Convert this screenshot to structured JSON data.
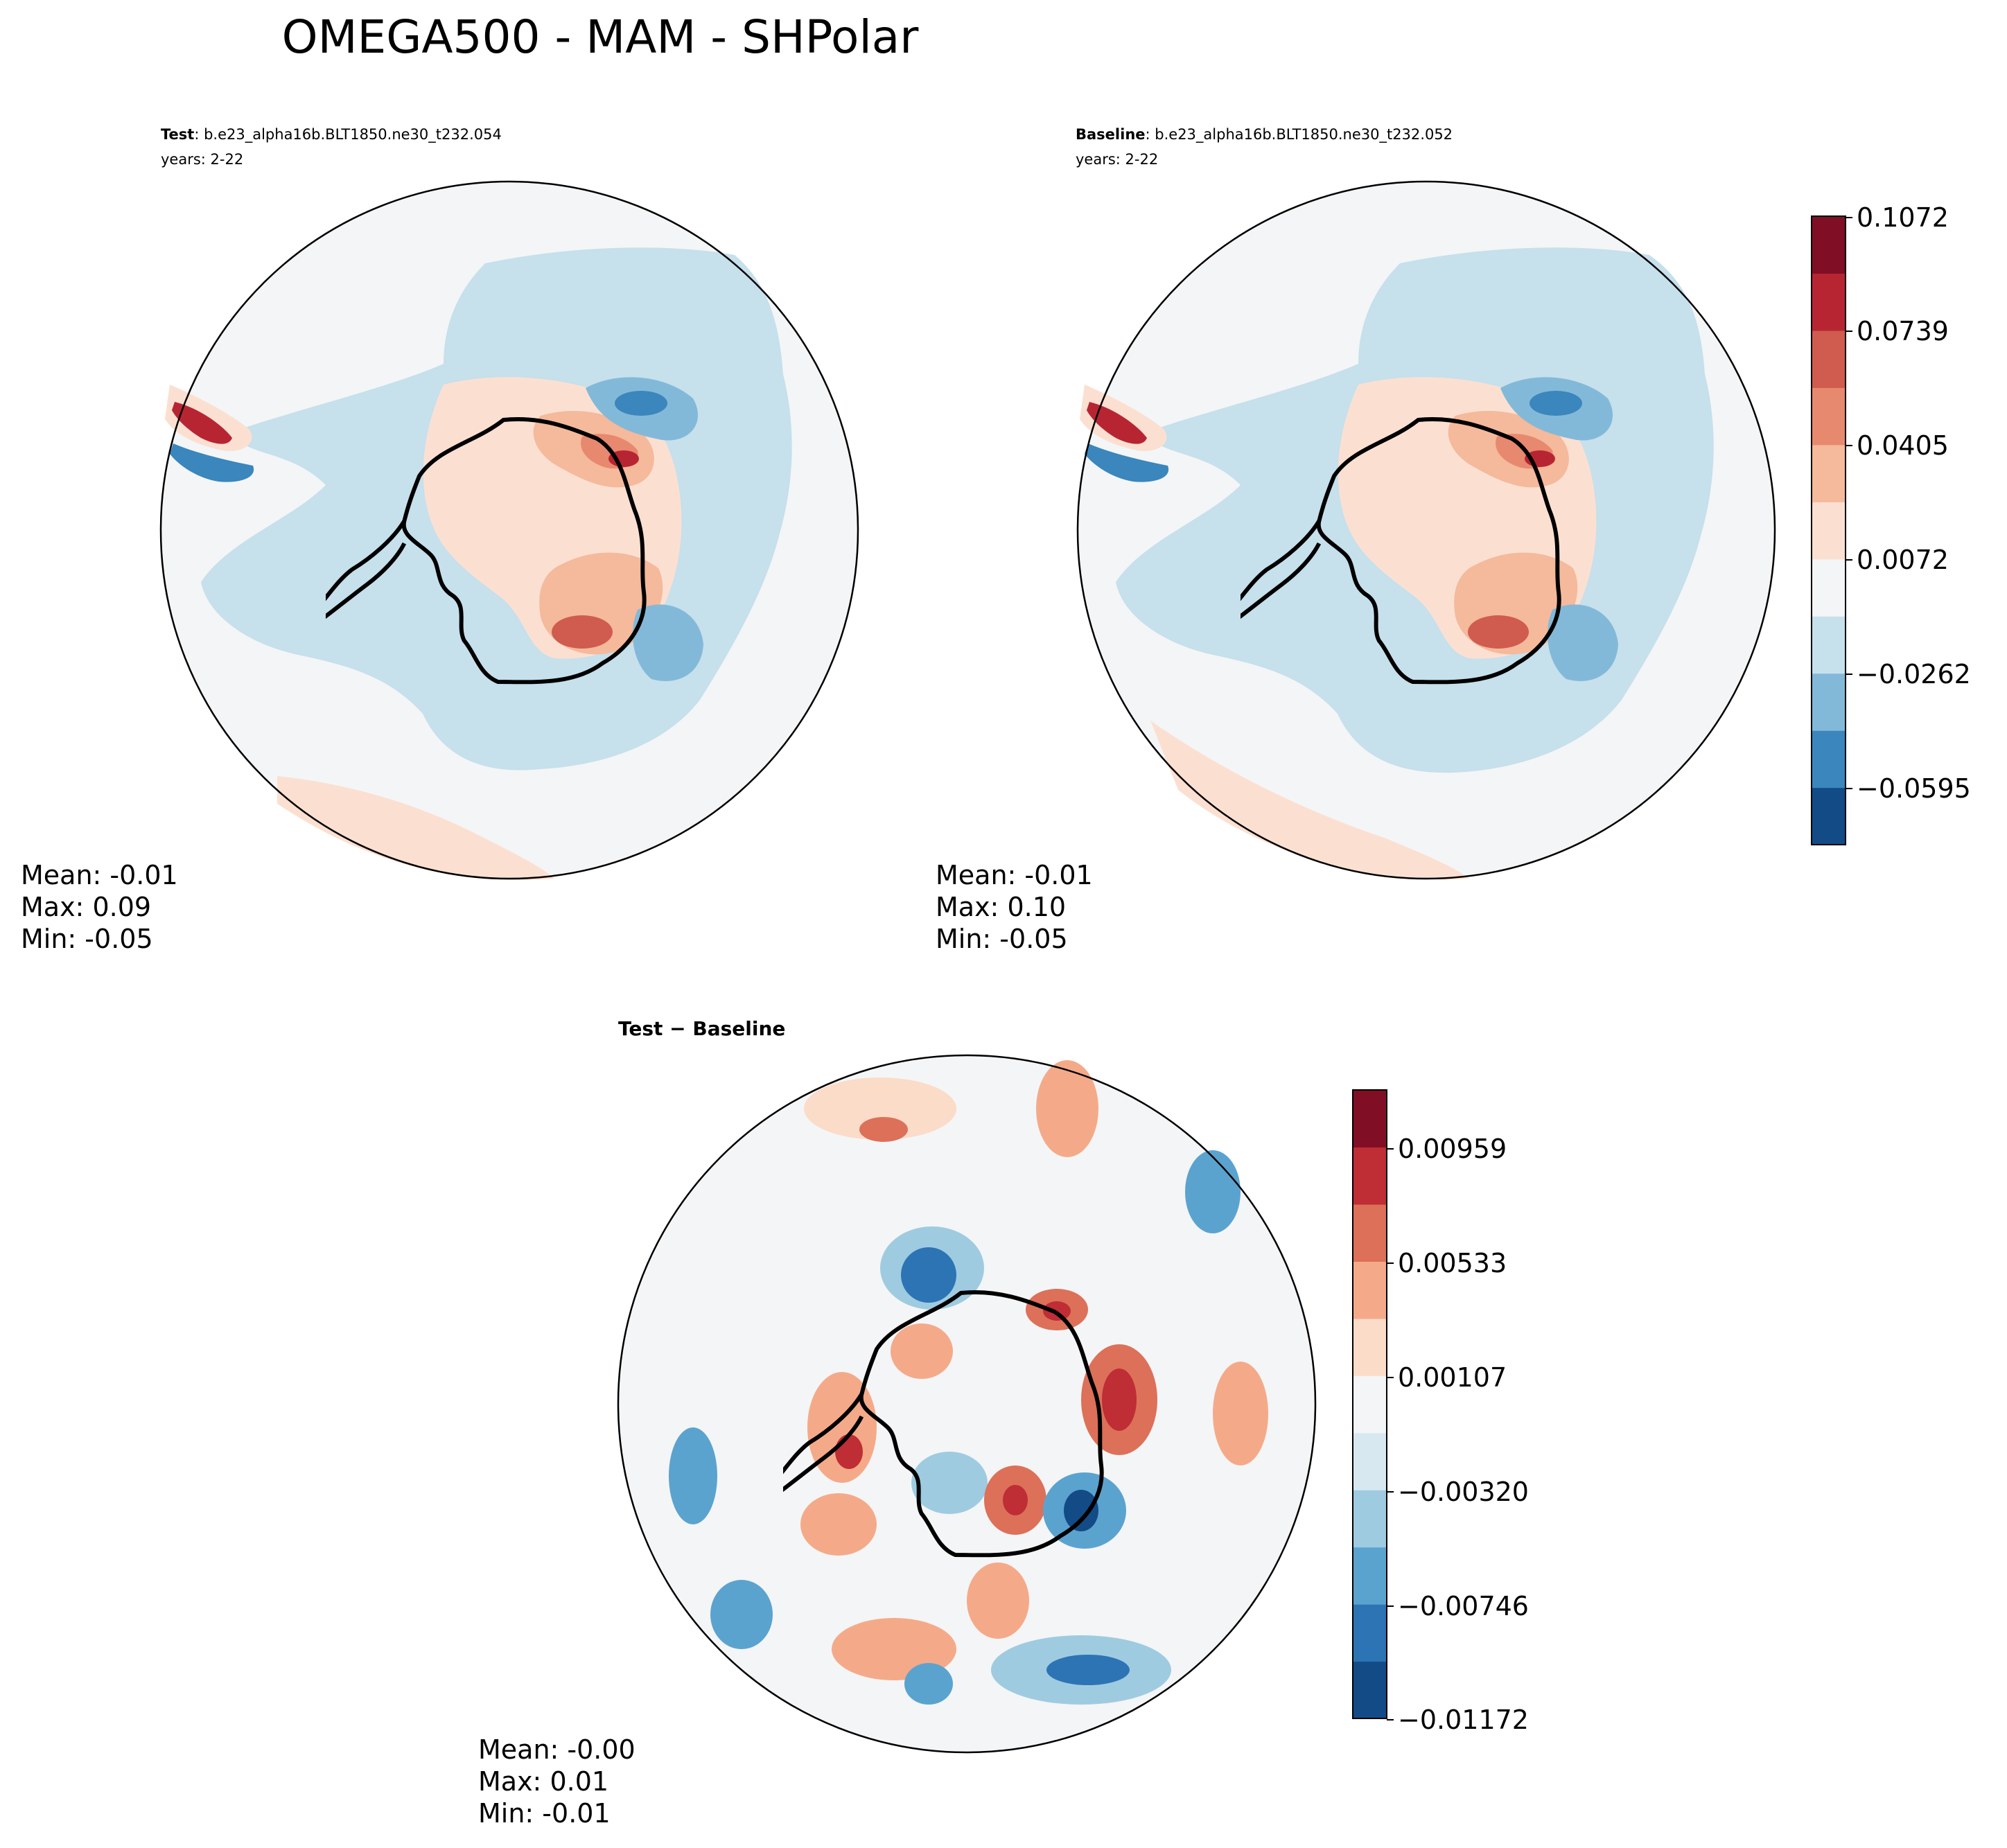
{
  "figure": {
    "title": "OMEGA500 - MAM - SHPolar"
  },
  "panels": [
    {
      "id": "test",
      "label_bold": "Test",
      "label_rest": ": b.e23_alpha16b.BLT1850.ne30_t232.054",
      "years": "years: 2-22",
      "stats": {
        "mean": "Mean: -0.01",
        "max": "Max:  0.09",
        "min": "Min: -0.05"
      }
    },
    {
      "id": "baseline",
      "label_bold": "Baseline",
      "label_rest": ": b.e23_alpha16b.BLT1850.ne30_t232.052",
      "years": "years: 2-22",
      "stats": {
        "mean": "Mean: -0.01",
        "max": "Max:  0.10",
        "min": "Min: -0.05"
      }
    },
    {
      "id": "diff",
      "label_bold": "Test − Baseline",
      "stats": {
        "mean": "Mean: -0.00",
        "max": "Max:  0.01",
        "min": "Min: -0.01"
      }
    }
  ],
  "colorbars": {
    "main": {
      "colors": [
        "#134b86",
        "#3a86bd",
        "#83b9d8",
        "#c6e0ec",
        "#f4f5f6",
        "#fbe0d2",
        "#f5b99c",
        "#e7896f",
        "#d05b4f",
        "#b82532",
        "#800f26"
      ],
      "tick_labels": [
        "0.1072",
        "0.0739",
        "0.0405",
        "0.0072",
        "−0.0262",
        "−0.0595"
      ]
    },
    "diff": {
      "colors": [
        "#134b86",
        "#2c74b4",
        "#5ba3cf",
        "#9fcbe1",
        "#d7e8f1",
        "#f4f5f6",
        "#fbdcc9",
        "#f4aa89",
        "#dd7059",
        "#bf2d35",
        "#800f26"
      ],
      "tick_labels": [
        "0.00959",
        "0.00533",
        "0.00107",
        "−0.00320",
        "−0.00746",
        "−0.01172"
      ]
    }
  }
}
